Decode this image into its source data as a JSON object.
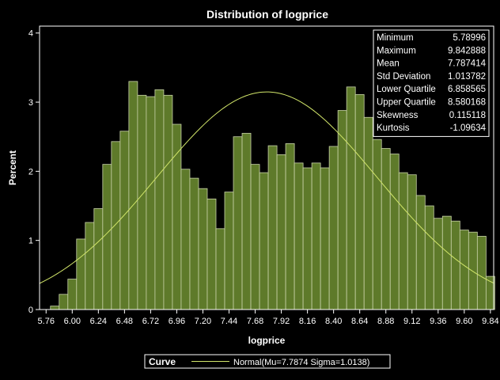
{
  "chart_data": {
    "type": "bar",
    "title": "Distribution of logprice",
    "xlabel": "logprice",
    "ylabel": "Percent",
    "xlim": [
      5.7,
      9.87
    ],
    "ylim": [
      0,
      4.1
    ],
    "bin_width": 0.08,
    "x_ticks": [
      "5.76",
      "6.00",
      "6.24",
      "6.48",
      "6.72",
      "6.96",
      "7.20",
      "7.44",
      "7.68",
      "7.92",
      "8.16",
      "8.40",
      "8.64",
      "8.88",
      "9.12",
      "9.36",
      "9.60",
      "9.84"
    ],
    "y_ticks": [
      "0",
      "1",
      "2",
      "3",
      "4"
    ],
    "bins": [
      {
        "x": 5.76,
        "value": 0.0
      },
      {
        "x": 5.84,
        "value": 0.05
      },
      {
        "x": 5.92,
        "value": 0.22
      },
      {
        "x": 6.0,
        "value": 0.44
      },
      {
        "x": 6.08,
        "value": 1.02
      },
      {
        "x": 6.16,
        "value": 1.26
      },
      {
        "x": 6.24,
        "value": 1.46
      },
      {
        "x": 6.32,
        "value": 2.1
      },
      {
        "x": 6.4,
        "value": 2.43
      },
      {
        "x": 6.48,
        "value": 2.58
      },
      {
        "x": 6.56,
        "value": 3.3
      },
      {
        "x": 6.64,
        "value": 3.1
      },
      {
        "x": 6.72,
        "value": 3.08
      },
      {
        "x": 6.8,
        "value": 3.18
      },
      {
        "x": 6.88,
        "value": 3.1
      },
      {
        "x": 6.96,
        "value": 2.68
      },
      {
        "x": 7.04,
        "value": 2.03
      },
      {
        "x": 7.12,
        "value": 1.9
      },
      {
        "x": 7.2,
        "value": 1.75
      },
      {
        "x": 7.28,
        "value": 1.6
      },
      {
        "x": 7.36,
        "value": 1.17
      },
      {
        "x": 7.44,
        "value": 1.7
      },
      {
        "x": 7.52,
        "value": 2.5
      },
      {
        "x": 7.6,
        "value": 2.55
      },
      {
        "x": 7.68,
        "value": 2.1
      },
      {
        "x": 7.76,
        "value": 1.98
      },
      {
        "x": 7.84,
        "value": 2.37
      },
      {
        "x": 7.92,
        "value": 2.24
      },
      {
        "x": 8.0,
        "value": 2.4
      },
      {
        "x": 8.08,
        "value": 2.12
      },
      {
        "x": 8.16,
        "value": 2.05
      },
      {
        "x": 8.24,
        "value": 2.12
      },
      {
        "x": 8.32,
        "value": 2.05
      },
      {
        "x": 8.4,
        "value": 2.36
      },
      {
        "x": 8.48,
        "value": 2.88
      },
      {
        "x": 8.56,
        "value": 3.22
      },
      {
        "x": 8.64,
        "value": 3.11
      },
      {
        "x": 8.72,
        "value": 2.78
      },
      {
        "x": 8.8,
        "value": 2.46
      },
      {
        "x": 8.88,
        "value": 2.33
      },
      {
        "x": 8.96,
        "value": 2.25
      },
      {
        "x": 9.04,
        "value": 1.98
      },
      {
        "x": 9.12,
        "value": 1.95
      },
      {
        "x": 9.2,
        "value": 1.65
      },
      {
        "x": 9.28,
        "value": 1.5
      },
      {
        "x": 9.36,
        "value": 1.32
      },
      {
        "x": 9.44,
        "value": 1.35
      },
      {
        "x": 9.52,
        "value": 1.28
      },
      {
        "x": 9.6,
        "value": 1.15
      },
      {
        "x": 9.68,
        "value": 1.12
      },
      {
        "x": 9.76,
        "value": 1.06
      },
      {
        "x": 9.84,
        "value": 0.48
      }
    ],
    "normal_curve": {
      "mu": 7.787414,
      "sigma": 1.013782
    },
    "stats": [
      {
        "label": "Minimum",
        "value": "5.78996"
      },
      {
        "label": "Maximum",
        "value": "9.842888"
      },
      {
        "label": "Mean",
        "value": "7.787414"
      },
      {
        "label": "Std Deviation",
        "value": "1.013782"
      },
      {
        "label": "Lower Quartile",
        "value": "6.858565"
      },
      {
        "label": "Upper Quartile",
        "value": "8.580168"
      },
      {
        "label": "Skewness",
        "value": "0.115118"
      },
      {
        "label": "Kurtosis",
        "value": "-1.09634"
      }
    ],
    "legend": {
      "title": "Curve",
      "label": "Normal(Mu=7.7874 Sigma=1.0138)",
      "placement": "bottom"
    },
    "grid": false,
    "colors": {
      "background": "#000000",
      "bar_fill": "#5e7a2a",
      "bar_stroke": "#c8d2a8",
      "curve": "#d2e66a",
      "axis": "#ffffff",
      "text": "#ffffff"
    }
  }
}
